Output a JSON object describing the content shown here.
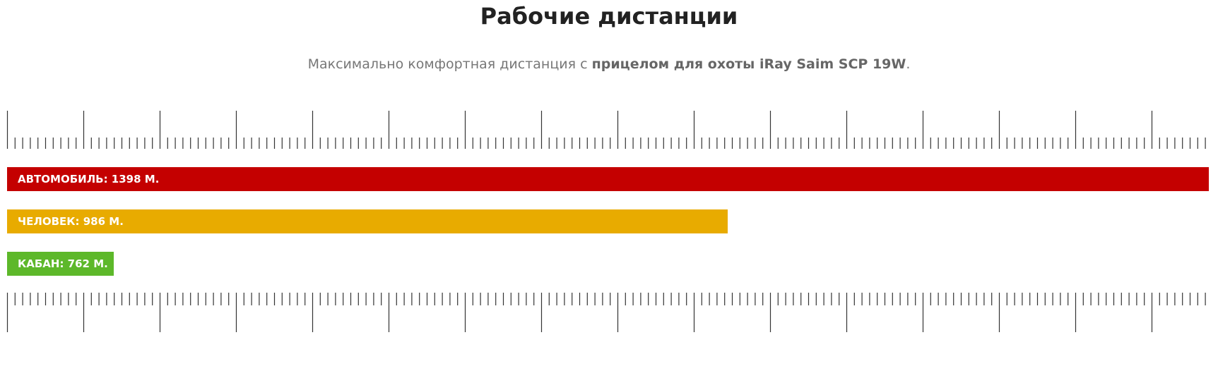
{
  "header": {
    "title": "Рабочие дистанции",
    "subtitle": {
      "lead": "Максимально комфортная дистанция с",
      "emphasis": "прицелом для охоты iRay Saim SCP 19W",
      "end": "."
    }
  },
  "distances": [
    {
      "label": "АВТОМОБИЛЬ: 1398 М."
    },
    {
      "label": "ЧЕЛОВЕК: 986 М."
    },
    {
      "label": "КАБАН: 762 М."
    }
  ]
}
